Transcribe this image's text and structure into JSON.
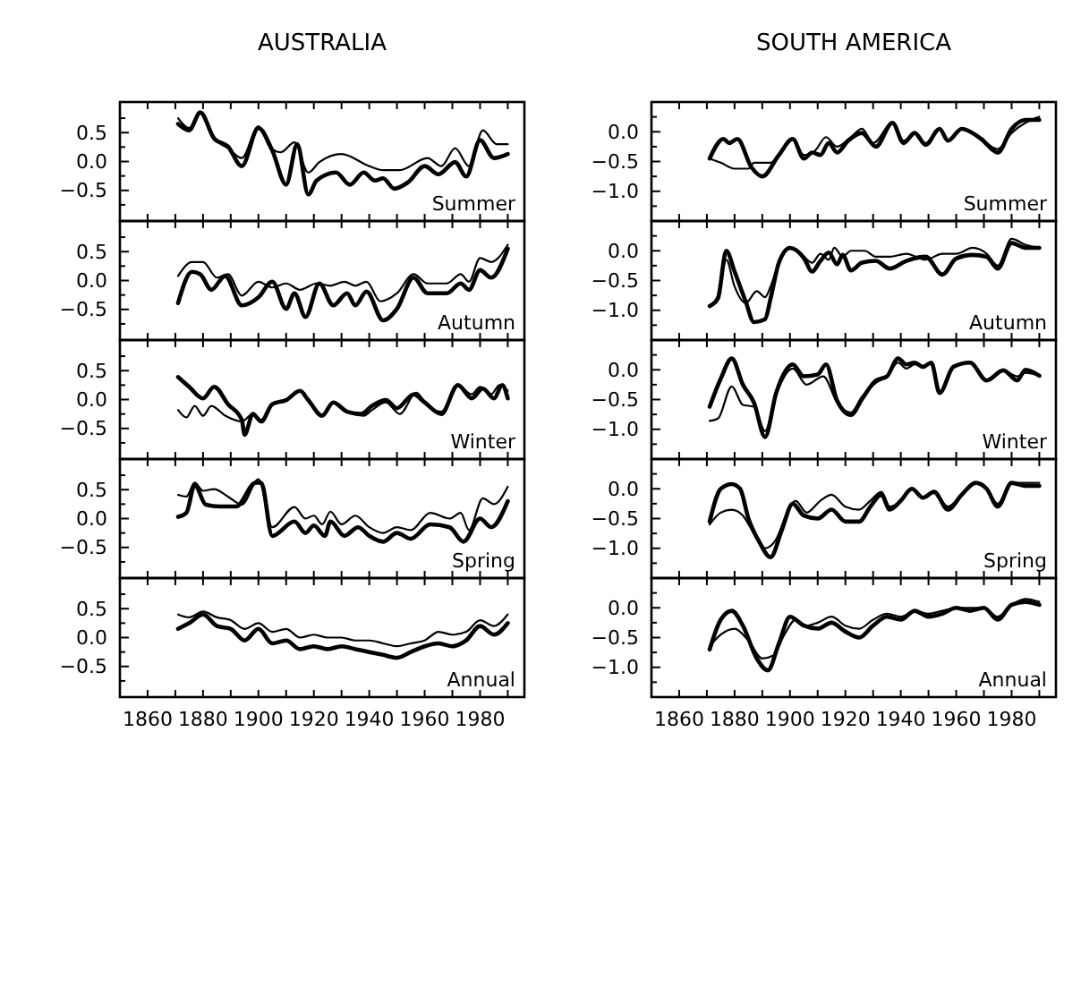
{
  "chart_data": [
    {
      "type": "line",
      "title": "AUSTRALIA",
      "annotations": [
        "Summer"
      ],
      "tick_labels": "y",
      "xlim": [
        1850,
        1996
      ],
      "ylim": [
        -1.03,
        1.03
      ],
      "xticks": [
        {
          "value": 1860,
          "label": null
        },
        {
          "value": 1870,
          "label": null
        },
        {
          "value": 1880,
          "label": null
        },
        {
          "value": 1890,
          "label": null
        },
        {
          "value": 1900,
          "label": null
        },
        {
          "value": 1910,
          "label": null
        },
        {
          "value": 1920,
          "label": null
        },
        {
          "value": 1930,
          "label": null
        },
        {
          "value": 1940,
          "label": null
        },
        {
          "value": 1950,
          "label": null
        },
        {
          "value": 1960,
          "label": null
        },
        {
          "value": 1970,
          "label": null
        },
        {
          "value": 1980,
          "label": null
        },
        {
          "value": 1990,
          "label": null
        }
      ],
      "yticks": [
        {
          "value": -0.75,
          "label": null
        },
        {
          "value": -0.5,
          "label": "−0.5"
        },
        {
          "value": -0.25,
          "label": null
        },
        {
          "value": 0,
          "label": "0.0"
        },
        {
          "value": 0.25,
          "label": null
        },
        {
          "value": 0.5,
          "label": "0.5"
        },
        {
          "value": 0.75,
          "label": null
        }
      ],
      "series": [
        {
          "color": "#000000",
          "x": [
            1871,
            1875,
            1879,
            1884,
            1889,
            1894,
            1900,
            1905,
            1910,
            1914,
            1918,
            1921,
            1928,
            1933,
            1938,
            1942,
            1945,
            1949,
            1954,
            1960,
            1965,
            1971,
            1975,
            1980,
            1985,
            1990
          ],
          "values": [
            0.65,
            0.54,
            0.85,
            0.4,
            0.26,
            -0.08,
            0.58,
            0.19,
            -0.4,
            0.3,
            -0.57,
            -0.33,
            -0.19,
            -0.4,
            -0.19,
            -0.33,
            -0.29,
            -0.47,
            -0.36,
            -0.08,
            -0.22,
            -0.01,
            -0.26,
            0.37,
            0.06,
            0.13
          ]
        },
        {
          "color": "#000000",
          "x": [
            1871,
            1875,
            1879,
            1884,
            1889,
            1894,
            1900,
            1904,
            1908,
            1913,
            1918,
            1922,
            1930,
            1940,
            1945,
            1951,
            1961,
            1966,
            1971,
            1976,
            1981,
            1986,
            1990
          ],
          "values": [
            0.75,
            0.58,
            0.85,
            0.4,
            0.23,
            0.06,
            0.61,
            0.26,
            0.16,
            0.33,
            -0.19,
            -0.01,
            0.13,
            -0.08,
            -0.15,
            -0.15,
            0.06,
            -0.08,
            0.23,
            -0.08,
            0.54,
            0.3,
            0.3
          ]
        }
      ]
    },
    {
      "type": "line",
      "title": "SOUTH AMERICA",
      "annotations": [
        "Summer"
      ],
      "tick_labels": "y",
      "xlim": [
        1850,
        1996
      ],
      "ylim": [
        -1.5,
        0.5
      ],
      "xticks": [
        {
          "value": 1860,
          "label": null
        },
        {
          "value": 1870,
          "label": null
        },
        {
          "value": 1880,
          "label": null
        },
        {
          "value": 1890,
          "label": null
        },
        {
          "value": 1900,
          "label": null
        },
        {
          "value": 1910,
          "label": null
        },
        {
          "value": 1920,
          "label": null
        },
        {
          "value": 1930,
          "label": null
        },
        {
          "value": 1940,
          "label": null
        },
        {
          "value": 1950,
          "label": null
        },
        {
          "value": 1960,
          "label": null
        },
        {
          "value": 1970,
          "label": null
        },
        {
          "value": 1980,
          "label": null
        },
        {
          "value": 1990,
          "label": null
        }
      ],
      "yticks": [
        {
          "value": -1.25,
          "label": null
        },
        {
          "value": -1,
          "label": "−1.0"
        },
        {
          "value": -0.75,
          "label": null
        },
        {
          "value": -0.5,
          "label": "−0.5"
        },
        {
          "value": -0.25,
          "label": null
        },
        {
          "value": 0,
          "label": "0.0"
        },
        {
          "value": 0.25,
          "label": null
        }
      ],
      "series": [
        {
          "color": "#000000",
          "x": [
            1871,
            1876,
            1878,
            1881,
            1886,
            1890,
            1896,
            1901,
            1905,
            1908,
            1911,
            1914,
            1917,
            1921,
            1926,
            1931,
            1937,
            1941,
            1945,
            1949,
            1954,
            1957,
            1962,
            1969,
            1975,
            1980,
            1985,
            1990
          ],
          "values": [
            -0.45,
            -0.12,
            -0.19,
            -0.12,
            -0.59,
            -0.75,
            -0.39,
            -0.12,
            -0.45,
            -0.35,
            -0.39,
            -0.19,
            -0.35,
            -0.15,
            -0.02,
            -0.25,
            0.15,
            -0.19,
            -0.02,
            -0.22,
            0.05,
            -0.15,
            0.05,
            -0.12,
            -0.35,
            0.05,
            0.2,
            0.2
          ]
        },
        {
          "color": "#000000",
          "x": [
            1871,
            1875,
            1880,
            1885,
            1887,
            1893,
            1897,
            1901,
            1905,
            1909,
            1913,
            1917,
            1922,
            1926,
            1930,
            1937,
            1941,
            1945,
            1949,
            1954,
            1957,
            1962,
            1969,
            1975,
            1980,
            1985,
            1990
          ],
          "values": [
            -0.45,
            -0.52,
            -0.62,
            -0.62,
            -0.52,
            -0.52,
            -0.32,
            -0.12,
            -0.39,
            -0.32,
            -0.09,
            -0.25,
            -0.09,
            0.05,
            -0.19,
            0.15,
            -0.15,
            -0.02,
            -0.19,
            0.05,
            -0.15,
            0.05,
            -0.12,
            -0.29,
            -0.02,
            0.15,
            0.25
          ]
        }
      ]
    },
    {
      "type": "line",
      "annotations": [
        "Autumn"
      ],
      "tick_labels": "y",
      "xlim": [
        1850,
        1996
      ],
      "ylim": [
        -1.03,
        1.03
      ],
      "xticks": [
        {
          "value": 1860,
          "label": null
        },
        {
          "value": 1870,
          "label": null
        },
        {
          "value": 1880,
          "label": null
        },
        {
          "value": 1890,
          "label": null
        },
        {
          "value": 1900,
          "label": null
        },
        {
          "value": 1910,
          "label": null
        },
        {
          "value": 1920,
          "label": null
        },
        {
          "value": 1930,
          "label": null
        },
        {
          "value": 1940,
          "label": null
        },
        {
          "value": 1950,
          "label": null
        },
        {
          "value": 1960,
          "label": null
        },
        {
          "value": 1970,
          "label": null
        },
        {
          "value": 1980,
          "label": null
        },
        {
          "value": 1990,
          "label": null
        }
      ],
      "yticks": [
        {
          "value": -0.75,
          "label": null
        },
        {
          "value": -0.5,
          "label": "−0.5"
        },
        {
          "value": -0.25,
          "label": null
        },
        {
          "value": 0,
          "label": "0.0"
        },
        {
          "value": 0.25,
          "label": null
        },
        {
          "value": 0.5,
          "label": "0.5"
        },
        {
          "value": 0.75,
          "label": null
        }
      ],
      "series": [
        {
          "color": "#000000",
          "x": [
            1871,
            1876,
            1879,
            1883,
            1888,
            1894,
            1900,
            1905,
            1910,
            1913,
            1917,
            1922,
            1927,
            1932,
            1935,
            1939,
            1945,
            1950,
            1956,
            1961,
            1968,
            1973,
            1976,
            1980,
            1984,
            1990
          ],
          "values": [
            -0.39,
            0.15,
            0.11,
            -0.16,
            0.08,
            -0.43,
            -0.29,
            -0.02,
            -0.49,
            -0.22,
            -0.63,
            -0.05,
            -0.43,
            -0.22,
            -0.43,
            -0.19,
            -0.69,
            -0.49,
            0.05,
            -0.22,
            -0.22,
            -0.05,
            -0.16,
            0.18,
            0.05,
            0.55
          ]
        },
        {
          "color": "#000000",
          "x": [
            1871,
            1876,
            1880,
            1885,
            1889,
            1894,
            1900,
            1905,
            1910,
            1915,
            1921,
            1926,
            1931,
            1935,
            1939,
            1944,
            1950,
            1956,
            1961,
            1968,
            1973,
            1976,
            1980,
            1984,
            1990
          ],
          "values": [
            0.08,
            0.32,
            0.32,
            0.05,
            0.11,
            -0.26,
            -0.02,
            -0.12,
            -0.05,
            -0.16,
            -0.05,
            -0.09,
            -0.02,
            -0.09,
            -0.02,
            -0.36,
            -0.22,
            0.11,
            -0.05,
            -0.05,
            0.11,
            -0.02,
            0.39,
            0.32,
            0.62
          ]
        }
      ]
    },
    {
      "type": "line",
      "annotations": [
        "Autumn"
      ],
      "tick_labels": "y",
      "xlim": [
        1850,
        1996
      ],
      "ylim": [
        -1.5,
        0.5
      ],
      "xticks": [
        {
          "value": 1860,
          "label": null
        },
        {
          "value": 1870,
          "label": null
        },
        {
          "value": 1880,
          "label": null
        },
        {
          "value": 1890,
          "label": null
        },
        {
          "value": 1900,
          "label": null
        },
        {
          "value": 1910,
          "label": null
        },
        {
          "value": 1920,
          "label": null
        },
        {
          "value": 1930,
          "label": null
        },
        {
          "value": 1940,
          "label": null
        },
        {
          "value": 1950,
          "label": null
        },
        {
          "value": 1960,
          "label": null
        },
        {
          "value": 1970,
          "label": null
        },
        {
          "value": 1980,
          "label": null
        },
        {
          "value": 1990,
          "label": null
        }
      ],
      "yticks": [
        {
          "value": -1.25,
          "label": null
        },
        {
          "value": -1,
          "label": "−1.0"
        },
        {
          "value": -0.75,
          "label": null
        },
        {
          "value": -0.5,
          "label": "−0.5"
        },
        {
          "value": -0.25,
          "label": null
        },
        {
          "value": 0,
          "label": "0.0"
        },
        {
          "value": 0.25,
          "label": null
        }
      ],
      "series": [
        {
          "color": "#000000",
          "x": [
            1871,
            1874,
            1877,
            1880,
            1884,
            1887,
            1891,
            1893,
            1896,
            1900,
            1905,
            1908,
            1911,
            1914,
            1917,
            1919,
            1922,
            1926,
            1931,
            1936,
            1942,
            1949,
            1955,
            1960,
            1966,
            1971,
            1975,
            1980,
            1985,
            1990
          ],
          "values": [
            -0.93,
            -0.8,
            0.0,
            -0.35,
            -0.85,
            -1.2,
            -1.15,
            -0.8,
            -0.2,
            0.05,
            -0.12,
            -0.35,
            -0.17,
            -0.03,
            -0.23,
            -0.07,
            -0.33,
            -0.2,
            -0.17,
            -0.3,
            -0.17,
            -0.1,
            -0.4,
            -0.13,
            -0.07,
            -0.1,
            -0.3,
            0.13,
            0.05,
            0.05
          ]
        },
        {
          "color": "#000000",
          "x": [
            1871,
            1874,
            1877,
            1880,
            1884,
            1888,
            1891,
            1893,
            1896,
            1900,
            1905,
            1908,
            1911,
            1914,
            1916,
            1919,
            1922,
            1927,
            1931,
            1936,
            1942,
            1949,
            1955,
            1960,
            1966,
            1971,
            1975,
            1980,
            1985,
            1990
          ],
          "values": [
            -0.93,
            -0.75,
            -0.15,
            -0.6,
            -0.88,
            -0.68,
            -0.78,
            -0.6,
            -0.2,
            0.05,
            -0.1,
            -0.2,
            -0.05,
            -0.15,
            0.05,
            -0.1,
            0.0,
            0.0,
            -0.1,
            -0.1,
            -0.05,
            -0.15,
            -0.05,
            -0.05,
            0.05,
            -0.05,
            -0.25,
            0.2,
            0.1,
            0.05
          ]
        }
      ]
    },
    {
      "type": "line",
      "annotations": [
        "Winter"
      ],
      "tick_labels": "y",
      "xlim": [
        1850,
        1996
      ],
      "ylim": [
        -1.03,
        1.03
      ],
      "xticks": [
        {
          "value": 1860,
          "label": null
        },
        {
          "value": 1870,
          "label": null
        },
        {
          "value": 1880,
          "label": null
        },
        {
          "value": 1890,
          "label": null
        },
        {
          "value": 1900,
          "label": null
        },
        {
          "value": 1910,
          "label": null
        },
        {
          "value": 1920,
          "label": null
        },
        {
          "value": 1930,
          "label": null
        },
        {
          "value": 1940,
          "label": null
        },
        {
          "value": 1950,
          "label": null
        },
        {
          "value": 1960,
          "label": null
        },
        {
          "value": 1970,
          "label": null
        },
        {
          "value": 1980,
          "label": null
        },
        {
          "value": 1990,
          "label": null
        }
      ],
      "yticks": [
        {
          "value": -0.75,
          "label": null
        },
        {
          "value": -0.5,
          "label": "−0.5"
        },
        {
          "value": -0.25,
          "label": null
        },
        {
          "value": 0,
          "label": "0.0"
        },
        {
          "value": 0.25,
          "label": null
        },
        {
          "value": 0.5,
          "label": "0.5"
        },
        {
          "value": 0.75,
          "label": null
        }
      ],
      "series": [
        {
          "color": "#000000",
          "x": [
            1871,
            1875,
            1880,
            1884,
            1889,
            1894,
            1895,
            1898,
            1901,
            1905,
            1910,
            1915,
            1918,
            1923,
            1927,
            1932,
            1937,
            1941,
            1946,
            1950,
            1956,
            1960,
            1966,
            1972,
            1977,
            1981,
            1985,
            1988,
            1990
          ],
          "values": [
            0.39,
            0.22,
            0.02,
            0.22,
            -0.08,
            -0.35,
            -0.61,
            -0.25,
            -0.38,
            -0.08,
            -0.01,
            0.15,
            -0.01,
            -0.28,
            -0.05,
            -0.21,
            -0.25,
            -0.11,
            -0.01,
            -0.15,
            0.09,
            -0.05,
            -0.25,
            0.25,
            0.02,
            0.19,
            0.02,
            0.25,
            0.02
          ]
        },
        {
          "color": "#000000",
          "x": [
            1871,
            1874,
            1877,
            1880,
            1883,
            1888,
            1894,
            1898,
            1901,
            1905,
            1910,
            1915,
            1918,
            1923,
            1927,
            1932,
            1938,
            1941,
            1946,
            1951,
            1957,
            1961,
            1966,
            1972,
            1977,
            1980,
            1984,
            1987,
            1990
          ],
          "values": [
            -0.18,
            -0.31,
            -0.11,
            -0.28,
            -0.11,
            -0.28,
            -0.38,
            -0.25,
            -0.35,
            -0.08,
            -0.01,
            0.15,
            -0.01,
            -0.28,
            -0.05,
            -0.21,
            -0.28,
            -0.18,
            -0.05,
            -0.25,
            0.12,
            -0.11,
            -0.21,
            0.25,
            0.09,
            0.22,
            0.09,
            0.25,
            0.15
          ]
        }
      ]
    },
    {
      "type": "line",
      "annotations": [
        "Winter"
      ],
      "tick_labels": "y",
      "xlim": [
        1850,
        1996
      ],
      "ylim": [
        -1.5,
        0.5
      ],
      "xticks": [
        {
          "value": 1860,
          "label": null
        },
        {
          "value": 1870,
          "label": null
        },
        {
          "value": 1880,
          "label": null
        },
        {
          "value": 1890,
          "label": null
        },
        {
          "value": 1900,
          "label": null
        },
        {
          "value": 1910,
          "label": null
        },
        {
          "value": 1920,
          "label": null
        },
        {
          "value": 1930,
          "label": null
        },
        {
          "value": 1940,
          "label": null
        },
        {
          "value": 1950,
          "label": null
        },
        {
          "value": 1960,
          "label": null
        },
        {
          "value": 1970,
          "label": null
        },
        {
          "value": 1980,
          "label": null
        },
        {
          "value": 1990,
          "label": null
        }
      ],
      "yticks": [
        {
          "value": -1.25,
          "label": null
        },
        {
          "value": -1,
          "label": "−1.0"
        },
        {
          "value": -0.75,
          "label": null
        },
        {
          "value": -0.5,
          "label": "−0.5"
        },
        {
          "value": -0.25,
          "label": null
        },
        {
          "value": 0,
          "label": "0.0"
        },
        {
          "value": 0.25,
          "label": null
        }
      ],
      "series": [
        {
          "color": "#000000",
          "x": [
            1871,
            1875,
            1879,
            1883,
            1887,
            1891,
            1895,
            1901,
            1905,
            1910,
            1913,
            1917,
            1922,
            1926,
            1931,
            1935,
            1939,
            1942,
            1945,
            1948,
            1951,
            1954,
            1959,
            1965,
            1971,
            1977,
            1982,
            1985,
            1990
          ],
          "values": [
            -0.62,
            -0.15,
            0.19,
            -0.25,
            -0.55,
            -1.13,
            -0.39,
            0.09,
            -0.11,
            -0.08,
            0.09,
            -0.52,
            -0.76,
            -0.49,
            -0.18,
            -0.11,
            0.19,
            0.09,
            0.12,
            0.05,
            0.12,
            -0.39,
            0.05,
            0.12,
            -0.18,
            -0.01,
            -0.18,
            0.0,
            -0.1
          ]
        },
        {
          "color": "#000000",
          "x": [
            1871,
            1874,
            1879,
            1883,
            1887,
            1891,
            1895,
            1901,
            1906,
            1912,
            1917,
            1922,
            1926,
            1931,
            1935,
            1939,
            1942,
            1945,
            1948,
            1951,
            1954,
            1959,
            1965,
            1971,
            1977,
            1982,
            1985,
            1990
          ],
          "values": [
            -0.86,
            -0.82,
            -0.28,
            -0.59,
            -0.62,
            -1.03,
            -0.42,
            0.02,
            -0.25,
            -0.11,
            -0.55,
            -0.72,
            -0.45,
            -0.22,
            -0.11,
            0.12,
            0.02,
            0.09,
            0.05,
            0.12,
            -0.39,
            0.05,
            0.12,
            -0.18,
            -0.01,
            -0.11,
            -0.05,
            -0.1
          ]
        }
      ]
    },
    {
      "type": "line",
      "annotations": [
        "Spring"
      ],
      "tick_labels": "y",
      "xlim": [
        1850,
        1996
      ],
      "ylim": [
        -1.03,
        1.03
      ],
      "xticks": [
        {
          "value": 1860,
          "label": null
        },
        {
          "value": 1870,
          "label": null
        },
        {
          "value": 1880,
          "label": null
        },
        {
          "value": 1890,
          "label": null
        },
        {
          "value": 1900,
          "label": null
        },
        {
          "value": 1910,
          "label": null
        },
        {
          "value": 1920,
          "label": null
        },
        {
          "value": 1930,
          "label": null
        },
        {
          "value": 1940,
          "label": null
        },
        {
          "value": 1950,
          "label": null
        },
        {
          "value": 1960,
          "label": null
        },
        {
          "value": 1970,
          "label": null
        },
        {
          "value": 1980,
          "label": null
        },
        {
          "value": 1990,
          "label": null
        }
      ],
      "yticks": [
        {
          "value": -0.75,
          "label": null
        },
        {
          "value": -0.5,
          "label": "−0.5"
        },
        {
          "value": -0.25,
          "label": null
        },
        {
          "value": 0,
          "label": "0.0"
        },
        {
          "value": 0.25,
          "label": null
        },
        {
          "value": 0.5,
          "label": "0.5"
        },
        {
          "value": 0.75,
          "label": null
        }
      ],
      "series": [
        {
          "color": "#000000",
          "x": [
            1871,
            1874,
            1877,
            1881,
            1886,
            1892,
            1899,
            1901,
            1905,
            1913,
            1917,
            1920,
            1924,
            1926,
            1931,
            1936,
            1940,
            1945,
            1950,
            1955,
            1962,
            1969,
            1974,
            1980,
            1984,
            1990
          ],
          "values": [
            0.03,
            0.1,
            0.58,
            0.24,
            0.21,
            0.21,
            0.62,
            0.62,
            -0.3,
            -0.05,
            -0.25,
            -0.12,
            -0.3,
            -0.05,
            -0.3,
            -0.15,
            -0.3,
            -0.4,
            -0.25,
            -0.35,
            -0.1,
            -0.15,
            -0.4,
            0.0,
            -0.15,
            0.3
          ]
        },
        {
          "color": "#000000",
          "x": [
            1871,
            1874,
            1877,
            1880,
            1884,
            1889,
            1894,
            1900,
            1905,
            1913,
            1917,
            1920,
            1923,
            1926,
            1930,
            1935,
            1940,
            1945,
            1950,
            1955,
            1962,
            1969,
            1973,
            1976,
            1981,
            1985,
            1990
          ],
          "values": [
            0.41,
            0.38,
            0.62,
            0.48,
            0.51,
            0.38,
            0.24,
            0.68,
            -0.15,
            0.2,
            0.0,
            0.05,
            -0.1,
            0.12,
            -0.1,
            0.05,
            -0.15,
            -0.25,
            -0.15,
            -0.2,
            0.1,
            0.0,
            0.1,
            -0.2,
            0.35,
            0.25,
            0.55
          ]
        }
      ]
    },
    {
      "type": "line",
      "annotations": [
        "Spring"
      ],
      "tick_labels": "y",
      "xlim": [
        1850,
        1996
      ],
      "ylim": [
        -1.5,
        0.5
      ],
      "xticks": [
        {
          "value": 1860,
          "label": null
        },
        {
          "value": 1870,
          "label": null
        },
        {
          "value": 1880,
          "label": null
        },
        {
          "value": 1890,
          "label": null
        },
        {
          "value": 1900,
          "label": null
        },
        {
          "value": 1910,
          "label": null
        },
        {
          "value": 1920,
          "label": null
        },
        {
          "value": 1930,
          "label": null
        },
        {
          "value": 1940,
          "label": null
        },
        {
          "value": 1950,
          "label": null
        },
        {
          "value": 1960,
          "label": null
        },
        {
          "value": 1970,
          "label": null
        },
        {
          "value": 1980,
          "label": null
        },
        {
          "value": 1990,
          "label": null
        }
      ],
      "yticks": [
        {
          "value": -1.25,
          "label": null
        },
        {
          "value": -1,
          "label": "−1.0"
        },
        {
          "value": -0.75,
          "label": null
        },
        {
          "value": -0.5,
          "label": "−0.5"
        },
        {
          "value": -0.25,
          "label": null
        },
        {
          "value": 0,
          "label": "0.0"
        },
        {
          "value": 0.25,
          "label": null
        }
      ],
      "series": [
        {
          "color": "#000000",
          "x": [
            1871,
            1875,
            1879,
            1882,
            1885,
            1889,
            1893,
            1897,
            1901,
            1905,
            1910,
            1915,
            1920,
            1925,
            1929,
            1933,
            1936,
            1940,
            1944,
            1948,
            1952,
            1957,
            1962,
            1967,
            1971,
            1975,
            1980,
            1985,
            1990
          ],
          "values": [
            -0.55,
            0.0,
            0.08,
            0.0,
            -0.5,
            -0.9,
            -1.15,
            -0.7,
            -0.25,
            -0.45,
            -0.5,
            -0.35,
            -0.55,
            -0.55,
            -0.3,
            -0.1,
            -0.35,
            -0.2,
            0.0,
            -0.15,
            -0.05,
            -0.35,
            -0.1,
            0.1,
            0.0,
            -0.3,
            0.1,
            0.05,
            0.05
          ]
        },
        {
          "color": "#000000",
          "x": [
            1871,
            1875,
            1879,
            1883,
            1887,
            1891,
            1895,
            1899,
            1902,
            1906,
            1911,
            1915,
            1920,
            1925,
            1929,
            1933,
            1936,
            1940,
            1944,
            1948,
            1952,
            1957,
            1962,
            1967,
            1971,
            1975,
            1980,
            1985,
            1990
          ],
          "values": [
            -0.6,
            -0.4,
            -0.35,
            -0.45,
            -0.75,
            -1.0,
            -0.85,
            -0.4,
            -0.2,
            -0.4,
            -0.2,
            -0.1,
            -0.3,
            -0.35,
            -0.2,
            -0.05,
            -0.3,
            -0.2,
            0.0,
            -0.15,
            -0.05,
            -0.3,
            -0.1,
            0.1,
            0.0,
            -0.25,
            0.1,
            0.1,
            0.1
          ]
        }
      ]
    },
    {
      "type": "line",
      "annotations": [
        "Annual"
      ],
      "xlim": [
        1850,
        1996
      ],
      "ylim": [
        -1.03,
        1.03
      ],
      "xticks": [
        1860,
        {
          "value": 1870,
          "label": null
        },
        1880,
        {
          "value": 1890,
          "label": null
        },
        1900,
        {
          "value": 1910,
          "label": null
        },
        1920,
        {
          "value": 1930,
          "label": null
        },
        1940,
        {
          "value": 1950,
          "label": null
        },
        1960,
        {
          "value": 1970,
          "label": null
        },
        1980,
        {
          "value": 1990,
          "label": null
        }
      ],
      "yticks": [
        {
          "value": -0.75,
          "label": null
        },
        {
          "value": -0.5,
          "label": "−0.5"
        },
        {
          "value": -0.25,
          "label": null
        },
        {
          "value": 0,
          "label": "0.0"
        },
        {
          "value": 0.25,
          "label": null
        },
        {
          "value": 0.5,
          "label": "0.5"
        },
        {
          "value": 0.75,
          "label": null
        }
      ],
      "series": [
        {
          "color": "#000000",
          "x": [
            1871,
            1875,
            1880,
            1885,
            1890,
            1895,
            1900,
            1905,
            1910,
            1915,
            1920,
            1925,
            1930,
            1935,
            1940,
            1945,
            1950,
            1955,
            1960,
            1965,
            1970,
            1975,
            1980,
            1985,
            1990
          ],
          "values": [
            0.15,
            0.25,
            0.4,
            0.2,
            0.15,
            -0.05,
            0.15,
            -0.1,
            -0.05,
            -0.2,
            -0.15,
            -0.2,
            -0.15,
            -0.2,
            -0.25,
            -0.3,
            -0.35,
            -0.25,
            -0.15,
            -0.1,
            -0.15,
            -0.05,
            0.2,
            0.05,
            0.25
          ]
        },
        {
          "color": "#000000",
          "x": [
            1871,
            1875,
            1880,
            1885,
            1890,
            1895,
            1900,
            1905,
            1910,
            1915,
            1920,
            1925,
            1930,
            1935,
            1940,
            1945,
            1950,
            1955,
            1960,
            1965,
            1970,
            1975,
            1980,
            1985,
            1990
          ],
          "values": [
            0.4,
            0.35,
            0.45,
            0.35,
            0.3,
            0.15,
            0.25,
            0.1,
            0.15,
            0.0,
            0.05,
            0.0,
            0.0,
            -0.05,
            -0.05,
            -0.1,
            -0.15,
            -0.1,
            -0.05,
            0.1,
            0.05,
            0.1,
            0.3,
            0.2,
            0.4
          ]
        }
      ]
    },
    {
      "type": "line",
      "annotations": [
        "Annual"
      ],
      "xlim": [
        1850,
        1996
      ],
      "ylim": [
        -1.5,
        0.5
      ],
      "xticks": [
        1860,
        {
          "value": 1870,
          "label": null
        },
        1880,
        {
          "value": 1890,
          "label": null
        },
        1900,
        {
          "value": 1910,
          "label": null
        },
        1920,
        {
          "value": 1930,
          "label": null
        },
        1940,
        {
          "value": 1950,
          "label": null
        },
        1960,
        {
          "value": 1970,
          "label": null
        },
        1980,
        {
          "value": 1990,
          "label": null
        }
      ],
      "yticks": [
        {
          "value": -1.25,
          "label": null
        },
        {
          "value": -1,
          "label": "−1.0"
        },
        {
          "value": -0.75,
          "label": null
        },
        {
          "value": -0.5,
          "label": "−0.5"
        },
        {
          "value": -0.25,
          "label": null
        },
        {
          "value": 0,
          "label": "0.0"
        },
        {
          "value": 0.25,
          "label": null
        }
      ],
      "series": [
        {
          "color": "#000000",
          "x": [
            1871,
            1875,
            1879,
            1883,
            1888,
            1892,
            1896,
            1900,
            1905,
            1910,
            1915,
            1920,
            1925,
            1930,
            1935,
            1940,
            1945,
            1950,
            1955,
            1960,
            1965,
            1970,
            1975,
            1980,
            1985,
            1990
          ],
          "values": [
            -0.7,
            -0.2,
            -0.05,
            -0.3,
            -0.85,
            -1.05,
            -0.6,
            -0.15,
            -0.3,
            -0.35,
            -0.25,
            -0.4,
            -0.5,
            -0.3,
            -0.15,
            -0.2,
            -0.05,
            -0.15,
            -0.1,
            0.0,
            -0.05,
            0.0,
            -0.2,
            0.05,
            0.1,
            0.05
          ]
        },
        {
          "color": "#000000",
          "x": [
            1871,
            1875,
            1880,
            1885,
            1890,
            1894,
            1898,
            1902,
            1906,
            1910,
            1915,
            1920,
            1925,
            1930,
            1935,
            1940,
            1945,
            1950,
            1955,
            1960,
            1965,
            1970,
            1975,
            1980,
            1985,
            1990
          ],
          "values": [
            -0.65,
            -0.45,
            -0.35,
            -0.55,
            -0.85,
            -0.8,
            -0.45,
            -0.2,
            -0.3,
            -0.25,
            -0.15,
            -0.3,
            -0.35,
            -0.2,
            -0.1,
            -0.15,
            -0.05,
            -0.1,
            -0.05,
            0.0,
            0.0,
            0.0,
            -0.15,
            0.05,
            0.15,
            0.1
          ]
        }
      ]
    }
  ]
}
